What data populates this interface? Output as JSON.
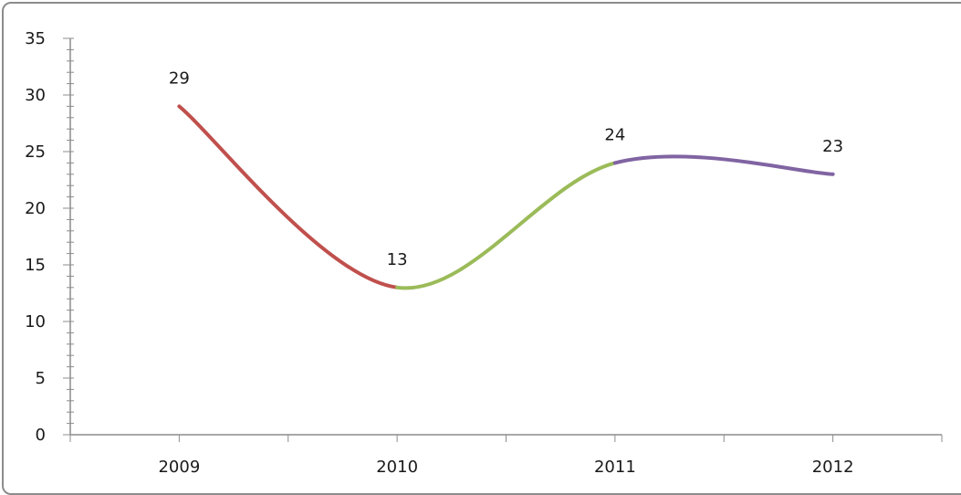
{
  "chart_data": {
    "type": "line",
    "categories": [
      "2009",
      "2010",
      "2011",
      "2012"
    ],
    "values": [
      29,
      13,
      24,
      23
    ],
    "data_labels": [
      "29",
      "13",
      "24",
      "23"
    ],
    "ylim": [
      0,
      35
    ],
    "y_major_step": 5,
    "y_minor_step": 1,
    "y_ticks": [
      "0",
      "5",
      "10",
      "15",
      "20",
      "25",
      "30",
      "35"
    ],
    "smooth": true,
    "grid": false,
    "legend": "none",
    "segment_colors": [
      "#c0504d",
      "#9bbb59",
      "#8064a2"
    ],
    "title": "",
    "xlabel": "",
    "ylabel": ""
  }
}
